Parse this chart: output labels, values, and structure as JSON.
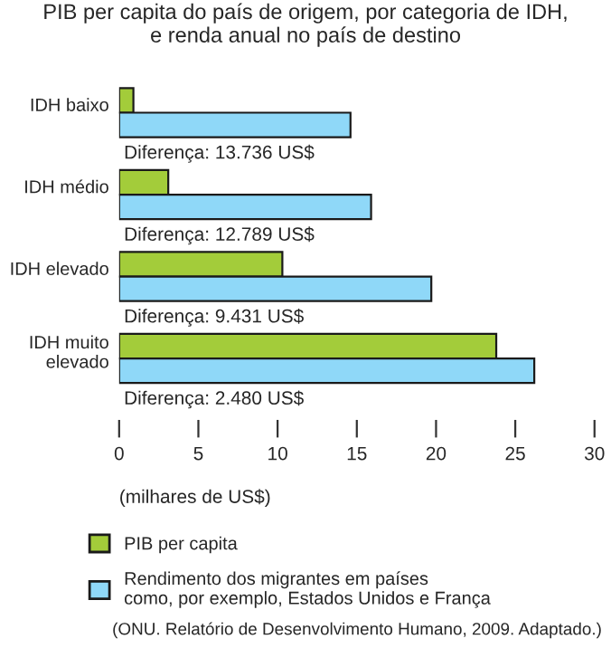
{
  "chart_data": {
    "type": "bar",
    "orientation": "horizontal",
    "title": "PIB per capita do país de origem, por categoria de IDH,\ne renda anual no país de destino",
    "xlabel": "(milhares de US$)",
    "categories": [
      "IDH baixo",
      "IDH médio",
      "IDH elevado",
      "IDH muito\nelevado"
    ],
    "series": [
      {
        "name": "PIB per capita",
        "color": "#a3cc3a",
        "values": [
          0.9,
          3.1,
          10.3,
          23.8
        ]
      },
      {
        "name": "Rendimento dos migrantes em países\ncomo, por exemplo, Estados Unidos e França",
        "color": "#8fd8f8",
        "values": [
          14.6,
          15.9,
          19.7,
          26.2
        ]
      }
    ],
    "xlim": [
      0,
      30
    ],
    "xticks": [
      0,
      5,
      10,
      15,
      20,
      25,
      30
    ],
    "annotations": [
      "Diferença: 13.736 US$",
      "Diferença: 12.789 US$",
      "Diferença: 9.431 US$",
      "Diferença: 2.480 US$",
      "(ONU. Relatório de Desenvolvimento Humano, 2009. Adaptado.)"
    ],
    "grid": false,
    "legend": "bottom"
  }
}
